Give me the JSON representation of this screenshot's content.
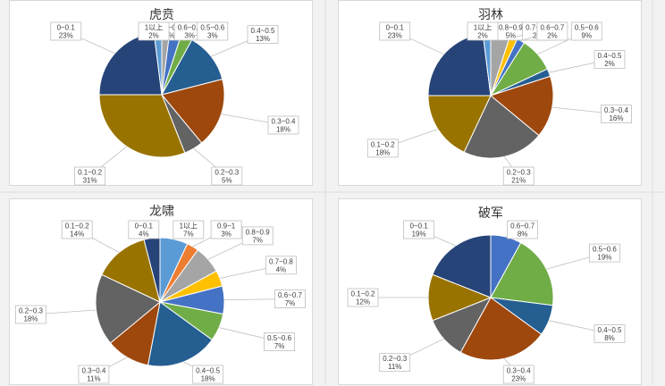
{
  "chart_data": [
    {
      "type": "pie",
      "title": "虎贲",
      "categories": [
        "0.8~0.9",
        "0.6~0.7",
        "0.5~0.6",
        "0.4~0.5",
        "0.3~0.4",
        "0.2~0.3",
        "0.1~0.2",
        "0~0.1",
        "1以上"
      ],
      "values": [
        2,
        3,
        3,
        13,
        18,
        5,
        31,
        23,
        2
      ],
      "value_suffix": "%",
      "colors": [
        "#a5a5a5",
        "#4472c4",
        "#70ad47",
        "#255e91",
        "#9e480e",
        "#636363",
        "#997300",
        "#264478",
        "#5b9bd5"
      ]
    },
    {
      "type": "pie",
      "title": "羽林",
      "categories": [
        "0.8~0.9",
        "0.7~0.8",
        "0.6~0.7",
        "0.5~0.6",
        "0.4~0.5",
        "0.3~0.4",
        "0.2~0.3",
        "0.1~0.2",
        "0~0.1",
        "1以上"
      ],
      "values": [
        5,
        2,
        2,
        9,
        2,
        16,
        21,
        18,
        23,
        2
      ],
      "value_suffix": "%",
      "colors": [
        "#a5a5a5",
        "#ffc000",
        "#4472c4",
        "#70ad47",
        "#255e91",
        "#9e480e",
        "#636363",
        "#997300",
        "#264478",
        "#5b9bd5"
      ]
    },
    {
      "type": "pie",
      "title": "龙啸",
      "categories": [
        "1以上",
        "0.9~1",
        "0.8~0.9",
        "0.7~0.8",
        "0.6~0.7",
        "0.5~0.6",
        "0.4~0.5",
        "0.3~0.4",
        "0.2~0.3",
        "0.1~0.2",
        "0~0.1"
      ],
      "values": [
        7,
        3,
        7,
        4,
        7,
        7,
        18,
        11,
        18,
        14,
        4
      ],
      "value_suffix": "%",
      "colors": [
        "#5b9bd5",
        "#ed7d31",
        "#a5a5a5",
        "#ffc000",
        "#4472c4",
        "#70ad47",
        "#255e91",
        "#9e480e",
        "#636363",
        "#997300",
        "#264478"
      ]
    },
    {
      "type": "pie",
      "title": "破军",
      "categories": [
        "0.6~0.7",
        "0.5~0.6",
        "0.4~0.5",
        "0.3~0.4",
        "0.2~0.3",
        "0.1~0.2",
        "0~0.1"
      ],
      "values": [
        8,
        19,
        8,
        23,
        11,
        12,
        19
      ],
      "value_suffix": "%",
      "colors": [
        "#4472c4",
        "#70ad47",
        "#255e91",
        "#9e480e",
        "#636363",
        "#997300",
        "#264478"
      ]
    }
  ]
}
